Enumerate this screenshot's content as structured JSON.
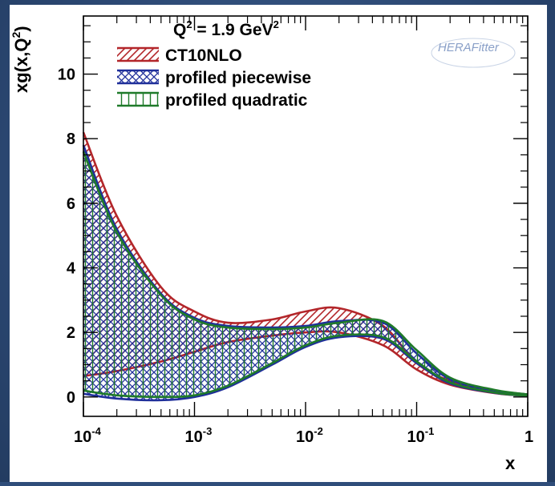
{
  "chart_data": {
    "type": "area",
    "title": "Q² = 1.9 GeV²",
    "title_main": "Q",
    "title_sup": "2",
    "title_rest": " = 1.9 GeV",
    "title_sup2": "2",
    "ylabel_main": "xg(x,Q",
    "ylabel_sup": "2",
    "ylabel_end": ")",
    "xlabel": "x",
    "x_scale": "log",
    "xlim": [
      0.0001,
      1
    ],
    "ylim": [
      -0.6,
      11.8
    ],
    "x_ticks": [
      {
        "value": 0.0001,
        "base": "10",
        "exp": "-4"
      },
      {
        "value": 0.001,
        "base": "10",
        "exp": "-3"
      },
      {
        "value": 0.01,
        "base": "10",
        "exp": "-2"
      },
      {
        "value": 0.1,
        "base": "10",
        "exp": "-1"
      },
      {
        "value": 1,
        "base": "1",
        "exp": ""
      }
    ],
    "y_ticks": [
      0,
      2,
      4,
      6,
      8,
      10
    ],
    "legend_position": "top-left",
    "logo_text": "HERAFitter",
    "series": [
      {
        "name": "CT10NLO",
        "color": "#b3262a",
        "hatch": "diagonal",
        "x": [
          0.0001,
          0.0002,
          0.0005,
          0.001,
          0.002,
          0.005,
          0.01,
          0.02,
          0.05,
          0.1,
          0.2,
          0.5,
          1
        ],
        "upper": [
          8.2,
          5.6,
          3.4,
          2.65,
          2.3,
          2.4,
          2.65,
          2.75,
          2.2,
          1.05,
          0.5,
          0.2,
          0.08
        ],
        "lower": [
          0.65,
          0.8,
          1.1,
          1.4,
          1.7,
          1.9,
          2.0,
          2.0,
          1.6,
          0.85,
          0.38,
          0.12,
          0.03
        ]
      },
      {
        "name": "profiled piecewise",
        "color": "#1f2f9a",
        "hatch": "cross",
        "x": [
          0.0001,
          0.0002,
          0.0005,
          0.001,
          0.002,
          0.005,
          0.01,
          0.02,
          0.05,
          0.1,
          0.2,
          0.5,
          1
        ],
        "upper": [
          7.8,
          5.2,
          3.2,
          2.45,
          2.2,
          2.15,
          2.2,
          2.35,
          2.3,
          1.35,
          0.55,
          0.2,
          0.08
        ],
        "lower": [
          0.1,
          -0.05,
          -0.1,
          0.0,
          0.3,
          1.0,
          1.55,
          1.85,
          1.8,
          1.05,
          0.42,
          0.13,
          0.03
        ]
      },
      {
        "name": "profiled quadratic",
        "color": "#1f7a2a",
        "hatch": "vertical",
        "x": [
          0.0001,
          0.0002,
          0.0005,
          0.001,
          0.002,
          0.005,
          0.01,
          0.02,
          0.05,
          0.1,
          0.2,
          0.5,
          1
        ],
        "upper": [
          7.6,
          5.1,
          3.15,
          2.4,
          2.15,
          2.1,
          2.15,
          2.3,
          2.35,
          1.45,
          0.6,
          0.22,
          0.08
        ],
        "lower": [
          0.2,
          0.05,
          0.0,
          0.05,
          0.35,
          1.05,
          1.6,
          1.9,
          1.85,
          1.1,
          0.45,
          0.14,
          0.03
        ]
      }
    ]
  }
}
